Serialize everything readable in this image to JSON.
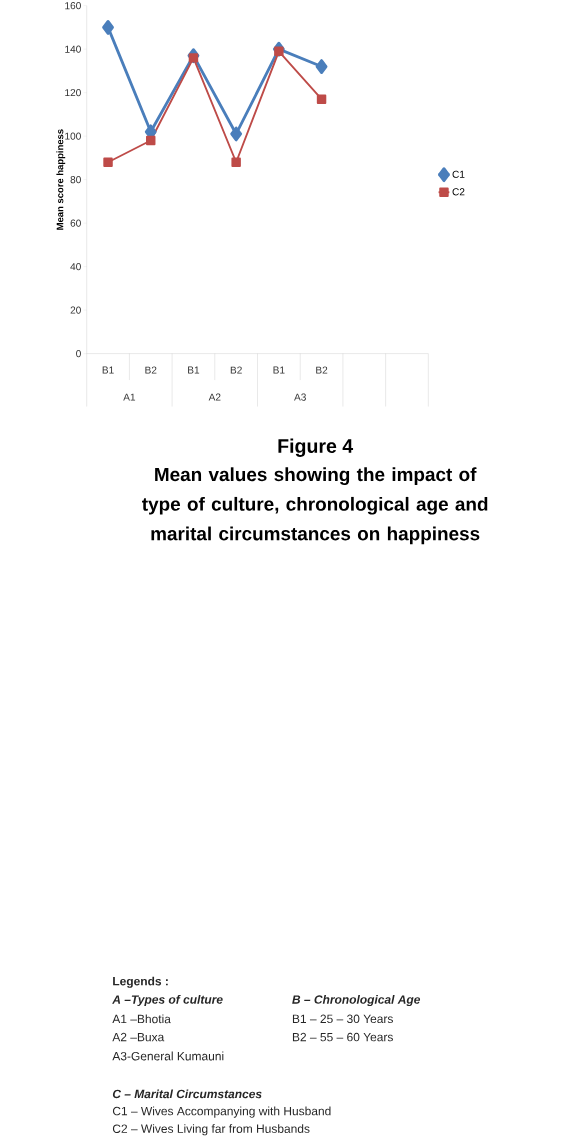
{
  "chart_data": {
    "type": "line",
    "title": "Figure 4",
    "subtitle": "Mean values showing the impact of  type of culture, chronological age and marital circumstances on happiness",
    "ylabel": "Mean score happiness",
    "categories": [
      "B1",
      "B2",
      "B1",
      "B2",
      "B1",
      "B2",
      null,
      null
    ],
    "series": [
      {
        "name": "C1",
        "color": "#4a7ebb",
        "marker": "diamond",
        "values": [
          150,
          102,
          137,
          101,
          140,
          132,
          null,
          null
        ]
      },
      {
        "name": "C2",
        "color": "#be4b48",
        "marker": "square",
        "values": [
          88,
          98,
          136,
          88,
          139,
          117,
          null,
          null
        ]
      }
    ],
    "ylim": [
      0,
      160
    ],
    "yticks": [
      0,
      20,
      40,
      60,
      80,
      100,
      120,
      140,
      160
    ],
    "grid": false,
    "legend": "right",
    "annotations": [
      "A1",
      "A2",
      "A3",
      "Legends :",
      "A –Types of culture",
      "A1 –Bhotia",
      "A2 –Buxa",
      "A3-General Kumauni",
      "B – Chronological Age",
      "B1 – 25 – 30 Years",
      "B2 – 55 – 60 Years",
      "C – Marital Circumstances",
      "C1 – Wives Accompanying with Husband",
      "C2 – Wives Living far from Husbands"
    ]
  }
}
